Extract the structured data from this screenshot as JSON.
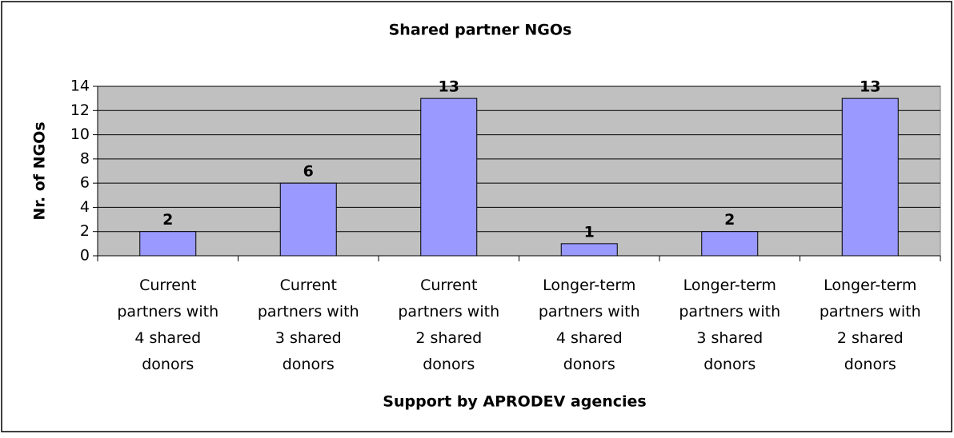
{
  "chart_data": {
    "type": "bar",
    "title": "Shared partner NGOs",
    "x_label": "Support by APRODEV agencies",
    "y_label": "Nr. of NGOs",
    "categories": [
      "Current partners with 4 shared donors",
      "Current partners with 3 shared donors",
      "Current partners with 2 shared donors",
      "Longer-term partners with 4 shared donors",
      "Longer-term partners with 3 shared donors",
      "Longer-term partners with 2 shared donors"
    ],
    "values": [
      2,
      6,
      13,
      1,
      2,
      13
    ],
    "color": "#9999ff",
    "ylim": [
      0,
      14
    ],
    "yticks": [
      0,
      2,
      4,
      6,
      8,
      10,
      12,
      14
    ],
    "grid": true
  }
}
